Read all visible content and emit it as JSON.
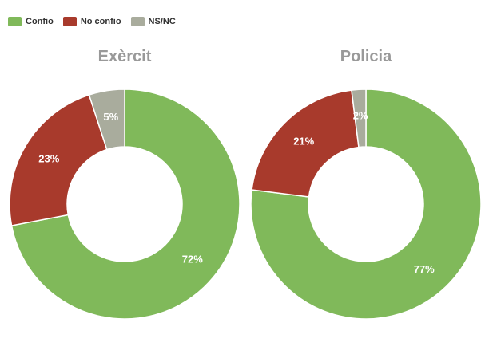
{
  "legend": {
    "items": [
      {
        "label": "Confio",
        "color": "#80b95a"
      },
      {
        "label": "No confio",
        "color": "#a83a2c"
      },
      {
        "label": "NS/NC",
        "color": "#a9ac9d"
      }
    ]
  },
  "chart_data": [
    {
      "type": "pie",
      "title": "Exèrcit",
      "categories": [
        "Confio",
        "No confio",
        "NS/NC"
      ],
      "values": [
        72,
        23,
        5
      ],
      "value_labels": [
        "72%",
        "23%",
        "5%"
      ],
      "colors": [
        "#80b95a",
        "#a83a2c",
        "#a9ac9d"
      ]
    },
    {
      "type": "pie",
      "title": "Policia",
      "categories": [
        "Confio",
        "No confio",
        "NS/NC"
      ],
      "values": [
        77,
        21,
        2
      ],
      "value_labels": [
        "77%",
        "21%",
        "2%"
      ],
      "colors": [
        "#80b95a",
        "#a83a2c",
        "#a9ac9d"
      ]
    }
  ]
}
